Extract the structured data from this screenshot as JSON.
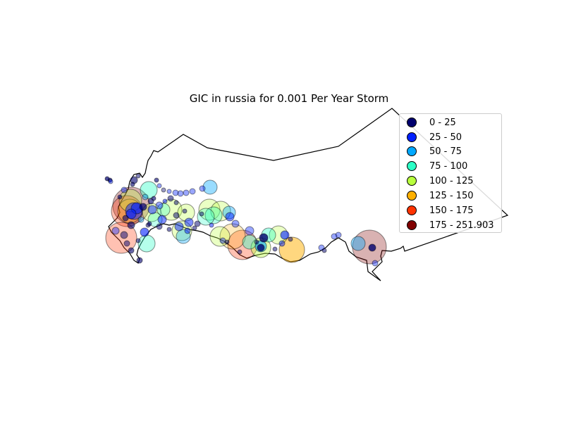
{
  "title": "GIC in russia for 0.001 Per Year Storm",
  "legend": [
    {
      "label": "0 - 25",
      "color": "#00006e"
    },
    {
      "label": "25 - 50",
      "color": "#0020ff"
    },
    {
      "label": "50 - 75",
      "color": "#00a8ff"
    },
    {
      "label": "75 - 100",
      "color": "#2bffc6"
    },
    {
      "label": "100 - 125",
      "color": "#b8ff3d"
    },
    {
      "label": "125 - 150",
      "color": "#ffb000"
    },
    {
      "label": "150 - 175",
      "color": "#ff3300"
    },
    {
      "label": "175 - 251.903",
      "color": "#800000"
    }
  ]
}
